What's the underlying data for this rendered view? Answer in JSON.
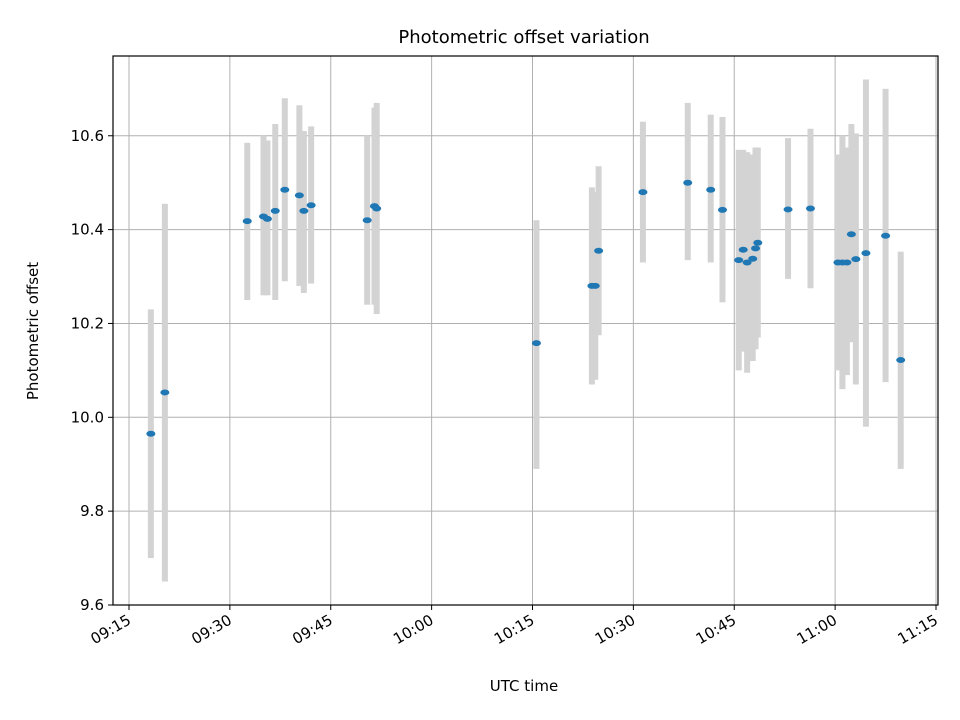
{
  "chart_data": {
    "type": "scatter",
    "title": "Photometric offset variation",
    "xlabel": "UTC time",
    "ylabel": "Photometric offset",
    "x_ticks": [
      "09:15",
      "09:30",
      "09:45",
      "10:00",
      "10:15",
      "10:30",
      "10:45",
      "11:00",
      "11:15"
    ],
    "x_range": [
      "09:15",
      "11:15"
    ],
    "y_ticks": [
      "9.6",
      "9.8",
      "10.0",
      "10.2",
      "10.4",
      "10.6"
    ],
    "ylim": [
      9.6,
      10.77
    ],
    "grid": true,
    "error_bar_color": "#d3d3d3",
    "point_color": "#1f77b4",
    "points": [
      {
        "t": "09:18:15",
        "y": 9.965,
        "lo": 9.7,
        "hi": 10.23
      },
      {
        "t": "09:20:20",
        "y": 10.053,
        "lo": 9.65,
        "hi": 10.455
      },
      {
        "t": "09:32:35",
        "y": 10.418,
        "lo": 10.25,
        "hi": 10.585
      },
      {
        "t": "09:35:00",
        "y": 10.428,
        "lo": 10.26,
        "hi": 10.6
      },
      {
        "t": "09:35:35",
        "y": 10.423,
        "lo": 10.26,
        "hi": 10.59
      },
      {
        "t": "09:36:45",
        "y": 10.44,
        "lo": 10.25,
        "hi": 10.625
      },
      {
        "t": "09:38:10",
        "y": 10.485,
        "lo": 10.29,
        "hi": 10.68
      },
      {
        "t": "09:40:20",
        "y": 10.473,
        "lo": 10.28,
        "hi": 10.665
      },
      {
        "t": "09:41:00",
        "y": 10.44,
        "lo": 10.265,
        "hi": 10.61
      },
      {
        "t": "09:42:05",
        "y": 10.452,
        "lo": 10.285,
        "hi": 10.62
      },
      {
        "t": "09:50:25",
        "y": 10.42,
        "lo": 10.24,
        "hi": 10.6
      },
      {
        "t": "09:51:30",
        "y": 10.45,
        "lo": 10.24,
        "hi": 10.66
      },
      {
        "t": "09:51:50",
        "y": 10.445,
        "lo": 10.22,
        "hi": 10.67
      },
      {
        "t": "10:15:35",
        "y": 10.158,
        "lo": 9.89,
        "hi": 10.42
      },
      {
        "t": "10:23:50",
        "y": 10.28,
        "lo": 10.07,
        "hi": 10.49
      },
      {
        "t": "10:24:20",
        "y": 10.28,
        "lo": 10.08,
        "hi": 10.48
      },
      {
        "t": "10:24:50",
        "y": 10.355,
        "lo": 10.175,
        "hi": 10.535
      },
      {
        "t": "10:31:25",
        "y": 10.48,
        "lo": 10.33,
        "hi": 10.63
      },
      {
        "t": "10:38:05",
        "y": 10.5,
        "lo": 10.335,
        "hi": 10.67
      },
      {
        "t": "10:41:30",
        "y": 10.485,
        "lo": 10.33,
        "hi": 10.645
      },
      {
        "t": "10:43:15",
        "y": 10.442,
        "lo": 10.245,
        "hi": 10.64
      },
      {
        "t": "10:45:40",
        "y": 10.335,
        "lo": 10.1,
        "hi": 10.57
      },
      {
        "t": "10:46:20",
        "y": 10.357,
        "lo": 10.14,
        "hi": 10.57
      },
      {
        "t": "10:46:55",
        "y": 10.33,
        "lo": 10.095,
        "hi": 10.565
      },
      {
        "t": "10:47:45",
        "y": 10.338,
        "lo": 10.12,
        "hi": 10.56
      },
      {
        "t": "10:48:10",
        "y": 10.36,
        "lo": 10.145,
        "hi": 10.575
      },
      {
        "t": "10:48:30",
        "y": 10.372,
        "lo": 10.17,
        "hi": 10.575
      },
      {
        "t": "10:53:00",
        "y": 10.443,
        "lo": 10.295,
        "hi": 10.595
      },
      {
        "t": "10:56:20",
        "y": 10.445,
        "lo": 10.275,
        "hi": 10.615
      },
      {
        "t": "11:00:25",
        "y": 10.33,
        "lo": 10.1,
        "hi": 10.56
      },
      {
        "t": "11:01:05",
        "y": 10.33,
        "lo": 10.06,
        "hi": 10.6
      },
      {
        "t": "11:01:45",
        "y": 10.33,
        "lo": 10.09,
        "hi": 10.575
      },
      {
        "t": "11:02:25",
        "y": 10.39,
        "lo": 10.16,
        "hi": 10.625
      },
      {
        "t": "11:03:05",
        "y": 10.337,
        "lo": 10.07,
        "hi": 10.605
      },
      {
        "t": "11:04:35",
        "y": 10.35,
        "lo": 9.98,
        "hi": 10.72
      },
      {
        "t": "11:07:30",
        "y": 10.387,
        "lo": 10.075,
        "hi": 10.7
      },
      {
        "t": "11:09:45",
        "y": 10.122,
        "lo": 9.89,
        "hi": 10.353
      }
    ]
  }
}
